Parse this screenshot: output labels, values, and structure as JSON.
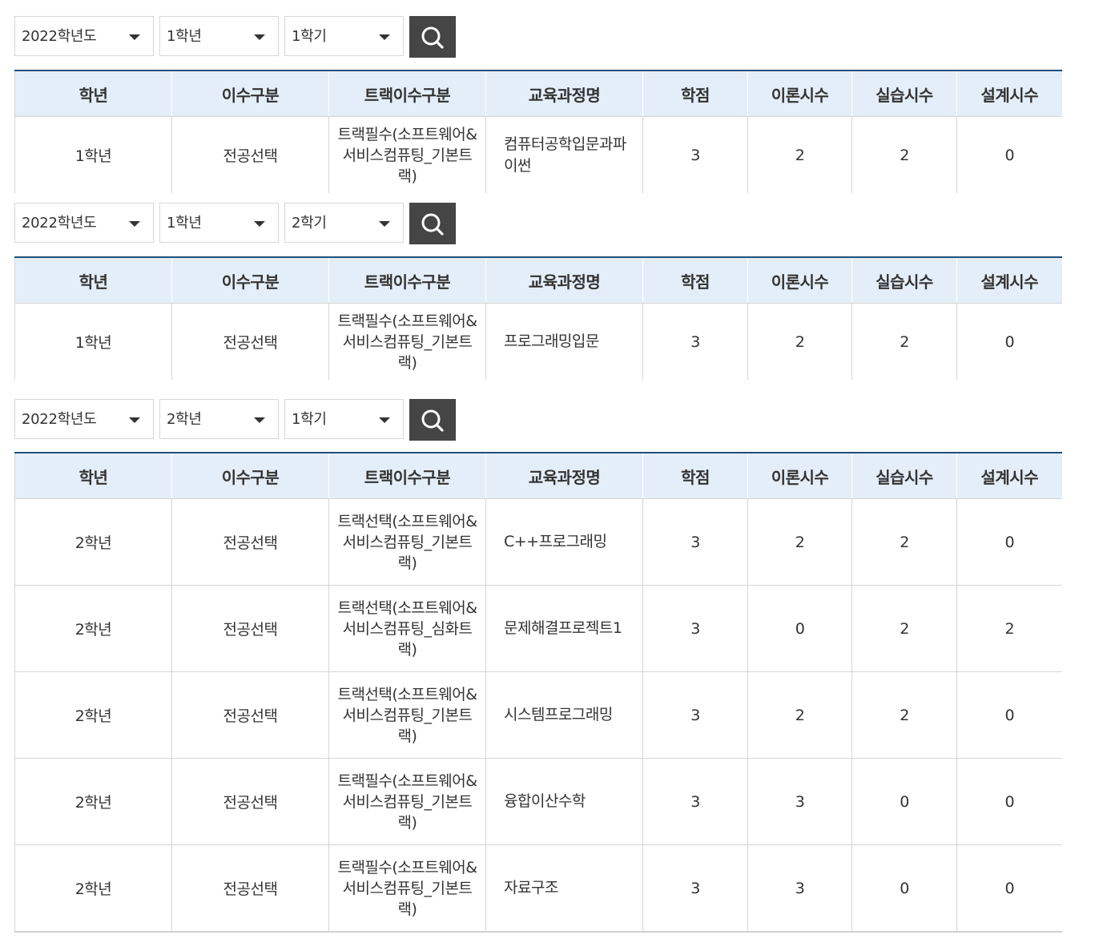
{
  "sections": [
    {
      "filters": {
        "year": "2022학년도",
        "grade": "1학년",
        "term": "1학기"
      },
      "headers": [
        "학년",
        "이수구분",
        "트랙이수구분",
        "교육과정명",
        "학점",
        "이론시수",
        "실습시수",
        "설계시수"
      ],
      "rows": [
        {
          "grade": "1학년",
          "category": "전공선택",
          "track": "트랙필수(소프트웨어&서비스컴퓨팅_기본트랙)",
          "course": "컴퓨터공학입문과파이썬",
          "credits": "3",
          "theory": "2",
          "practice": "2",
          "design": "0"
        }
      ]
    },
    {
      "filters": {
        "year": "2022학년도",
        "grade": "1학년",
        "term": "2학기"
      },
      "headers": [
        "학년",
        "이수구분",
        "트랙이수구분",
        "교육과정명",
        "학점",
        "이론시수",
        "실습시수",
        "설계시수"
      ],
      "rows": [
        {
          "grade": "1학년",
          "category": "전공선택",
          "track": "트랙필수(소프트웨어&서비스컴퓨팅_기본트랙)",
          "course": "프로그래밍입문",
          "credits": "3",
          "theory": "2",
          "practice": "2",
          "design": "0"
        }
      ]
    },
    {
      "filters": {
        "year": "2022학년도",
        "grade": "2학년",
        "term": "1학기"
      },
      "headers": [
        "학년",
        "이수구분",
        "트랙이수구분",
        "교육과정명",
        "학점",
        "이론시수",
        "실습시수",
        "설계시수"
      ],
      "rows": [
        {
          "grade": "2학년",
          "category": "전공선택",
          "track": "트랙선택(소프트웨어&서비스컴퓨팅_기본트랙)",
          "course": "C++프로그래밍",
          "credits": "3",
          "theory": "2",
          "practice": "2",
          "design": "0"
        },
        {
          "grade": "2학년",
          "category": "전공선택",
          "track": "트랙선택(소프트웨어&서비스컴퓨팅_심화트랙)",
          "course": "문제해결프로젝트1",
          "credits": "3",
          "theory": "0",
          "practice": "2",
          "design": "2"
        },
        {
          "grade": "2학년",
          "category": "전공선택",
          "track": "트랙선택(소프트웨어&서비스컴퓨팅_기본트랙)",
          "course": "시스템프로그래밍",
          "credits": "3",
          "theory": "2",
          "practice": "2",
          "design": "0"
        },
        {
          "grade": "2학년",
          "category": "전공선택",
          "track": "트랙필수(소프트웨어&서비스컴퓨팅_기본트랙)",
          "course": "융합이산수학",
          "credits": "3",
          "theory": "3",
          "practice": "0",
          "design": "0"
        },
        {
          "grade": "2학년",
          "category": "전공선택",
          "track": "트랙필수(소프트웨어&서비스컴퓨팅_기본트랙)",
          "course": "자료구조",
          "credits": "3",
          "theory": "3",
          "practice": "0",
          "design": "0"
        }
      ]
    }
  ],
  "icons": {
    "search": "search-icon",
    "dropdown": "chevron-down-icon"
  },
  "colors": {
    "header_bg": "#e4eef8",
    "table_top_border": "#1e4f7a",
    "search_button": "#454545"
  }
}
